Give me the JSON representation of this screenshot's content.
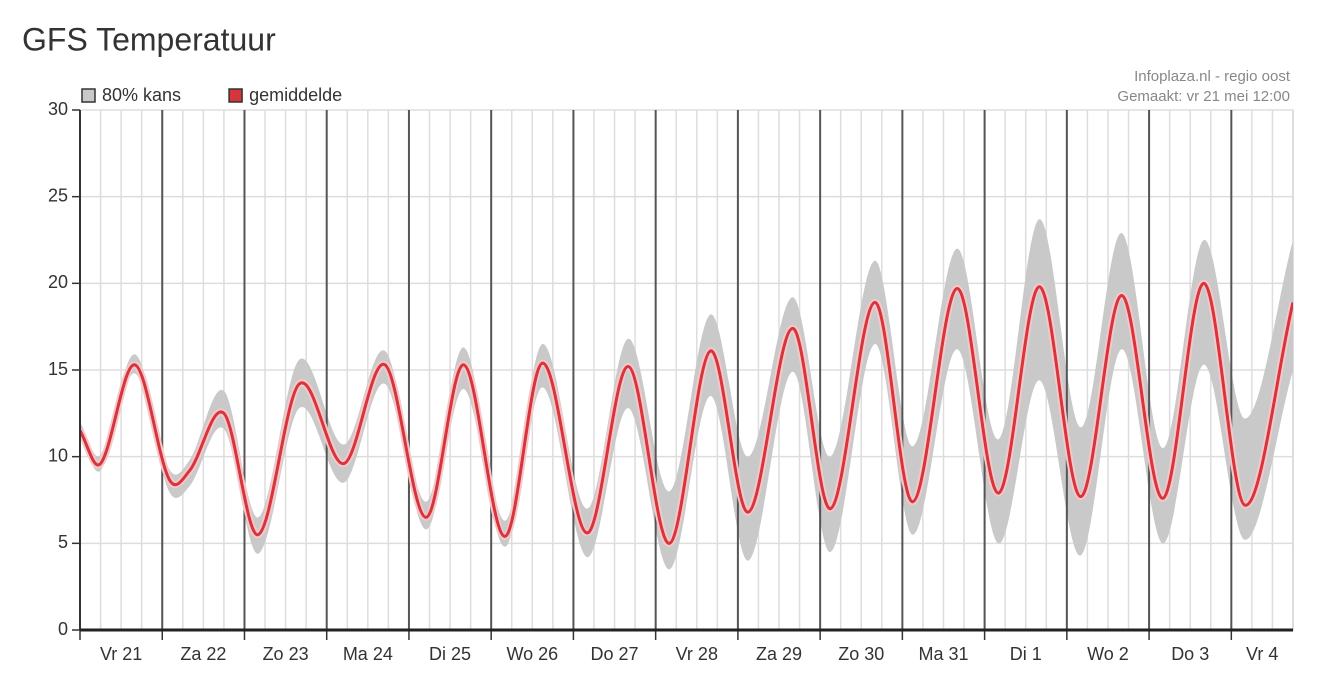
{
  "chart_data": {
    "type": "line",
    "title": "GFS Temperatuur",
    "source": "Infoplaza.nl - regio oost",
    "created": "Gemaakt: vr 21 mei 12:00",
    "categories": [
      "Vr 21",
      "Za 22",
      "Zo 23",
      "Ma 24",
      "Di 25",
      "Wo 26",
      "Do 27",
      "Vr 28",
      "Za 29",
      "Zo 30",
      "Ma 31",
      "Di 1",
      "Wo 2",
      "Do 3",
      "Vr 4"
    ],
    "xlim": [
      0,
      354
    ],
    "xticks": [
      0,
      24,
      48,
      72,
      96,
      120,
      144,
      168,
      192,
      216,
      240,
      264,
      288,
      312,
      336
    ],
    "minor_xticks": [
      6,
      12,
      18,
      30,
      36,
      42,
      54,
      60,
      66,
      78,
      84,
      90,
      102,
      108,
      114,
      126,
      132,
      138,
      150,
      156,
      162,
      174,
      180,
      186,
      198,
      204,
      210,
      222,
      228,
      234,
      246,
      252,
      258,
      270,
      276,
      282,
      294,
      300,
      306,
      318,
      324,
      330,
      342,
      348
    ],
    "ylim": [
      0,
      30
    ],
    "yticks": [
      0,
      5,
      10,
      15,
      20,
      25,
      30
    ],
    "grid": true,
    "x": [
      0,
      6,
      16,
      26,
      32,
      42,
      52,
      64,
      77,
      89,
      101,
      112,
      124,
      135,
      148,
      160,
      172,
      184,
      195,
      208,
      219,
      232,
      243,
      256,
      268,
      280,
      292,
      304,
      316,
      328,
      340,
      354
    ],
    "series": [
      {
        "name": "80% kans",
        "color": "#c9c9c9",
        "low": [
          11.2,
          9.2,
          14.8,
          8.0,
          8.3,
          11.6,
          4.4,
          12.8,
          8.5,
          14.2,
          5.8,
          13.9,
          4.8,
          14.0,
          4.2,
          12.8,
          3.5,
          13.5,
          4.0,
          14.9,
          4.5,
          16.5,
          5.5,
          16.2,
          5.0,
          14.4,
          4.3,
          16.2,
          5.0,
          15.3,
          5.2,
          15.0
        ],
        "high": [
          12.0,
          10.1,
          15.9,
          9.3,
          9.8,
          13.8,
          6.5,
          15.6,
          10.7,
          16.1,
          7.4,
          16.3,
          6.3,
          16.5,
          7.0,
          16.8,
          8.0,
          18.2,
          10.0,
          19.2,
          10.0,
          21.3,
          10.6,
          22.0,
          11.0,
          23.7,
          11.7,
          22.9,
          10.5,
          22.5,
          12.2,
          22.5
        ]
      },
      {
        "name": "gemiddelde",
        "color": "#d8343c",
        "values": [
          11.5,
          9.6,
          15.3,
          8.7,
          9.2,
          12.5,
          5.5,
          14.2,
          9.6,
          15.3,
          6.5,
          15.3,
          5.4,
          15.4,
          5.6,
          15.2,
          5.0,
          16.1,
          6.8,
          17.4,
          7.0,
          18.9,
          7.4,
          19.7,
          7.9,
          19.8,
          7.7,
          19.3,
          7.6,
          20.0,
          7.2,
          18.9
        ]
      }
    ]
  }
}
